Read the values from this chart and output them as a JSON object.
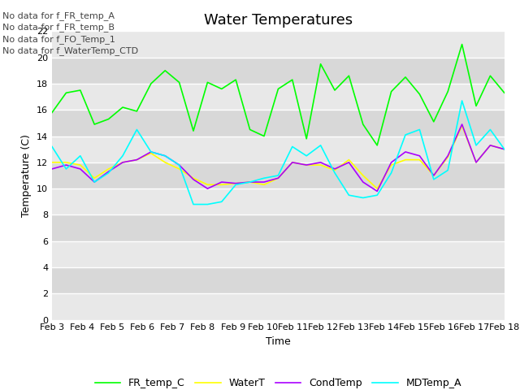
{
  "title": "Water Temperatures",
  "xlabel": "Time",
  "ylabel": "Temperature (C)",
  "ylim": [
    0,
    22
  ],
  "yticks": [
    0,
    2,
    4,
    6,
    8,
    10,
    12,
    14,
    16,
    18,
    20,
    22
  ],
  "annotations": [
    "No data for f_FR_temp_A",
    "No data for f_FR_temp_B",
    "No data for f_FO_Temp_1",
    "No data for f_WaterTemp_CTD"
  ],
  "x_labels": [
    "Feb 3",
    "Feb 4",
    "Feb 5",
    "Feb 6",
    "Feb 7",
    "Feb 8",
    "Feb 9",
    "Feb 10",
    "Feb 11",
    "Feb 12",
    "Feb 13",
    "Feb 14",
    "Feb 15",
    "Feb 16",
    "Feb 17",
    "Feb 18"
  ],
  "series": [
    {
      "name": "FR_temp_C",
      "color": "#00ff00",
      "linewidth": 1.2,
      "data": [
        15.8,
        17.3,
        17.5,
        14.9,
        15.3,
        16.2,
        15.9,
        18.0,
        19.0,
        18.1,
        14.4,
        18.1,
        17.6,
        18.3,
        14.5,
        14.0,
        17.6,
        18.3,
        13.8,
        19.5,
        17.5,
        18.6,
        14.9,
        13.3,
        17.4,
        18.5,
        17.2,
        15.1,
        17.4,
        21.0,
        16.3,
        18.6,
        17.3
      ]
    },
    {
      "name": "WaterT",
      "color": "#ffff00",
      "linewidth": 1.2,
      "data": [
        12.0,
        12.0,
        11.8,
        10.8,
        11.5,
        12.0,
        12.2,
        12.7,
        12.0,
        11.5,
        10.8,
        10.3,
        10.3,
        10.4,
        10.5,
        10.3,
        10.8,
        12.0,
        11.8,
        11.8,
        11.4,
        12.2,
        11.0,
        10.0,
        11.8,
        12.2,
        12.2,
        11.0,
        12.4,
        14.8,
        12.0,
        13.3,
        13.0
      ]
    },
    {
      "name": "CondTemp",
      "color": "#aa00ff",
      "linewidth": 1.2,
      "data": [
        11.5,
        11.8,
        11.5,
        10.5,
        11.3,
        12.0,
        12.2,
        12.8,
        12.5,
        11.8,
        10.7,
        10.0,
        10.5,
        10.4,
        10.5,
        10.5,
        10.8,
        12.0,
        11.8,
        12.0,
        11.5,
        12.0,
        10.5,
        9.8,
        12.0,
        12.8,
        12.5,
        11.0,
        12.5,
        14.9,
        12.0,
        13.3,
        13.0
      ]
    },
    {
      "name": "MDTemp_A",
      "color": "#00ffff",
      "linewidth": 1.2,
      "data": [
        13.2,
        11.5,
        12.5,
        10.5,
        11.2,
        12.5,
        14.5,
        12.8,
        12.5,
        11.8,
        8.8,
        8.8,
        9.0,
        10.3,
        10.5,
        10.8,
        11.0,
        13.2,
        12.5,
        13.3,
        11.2,
        9.5,
        9.3,
        9.5,
        11.2,
        14.1,
        14.5,
        10.7,
        11.4,
        16.7,
        13.3,
        14.5,
        13.0
      ]
    }
  ],
  "title_fontsize": 13,
  "label_fontsize": 9,
  "tick_fontsize": 8,
  "legend_fontsize": 9,
  "band_colors": [
    "#e8e8e8",
    "#d8d8d8"
  ],
  "grid_color": "#ffffff",
  "grid_linewidth": 1.0,
  "fig_bg": "#ffffff",
  "annotation_fontsize": 8,
  "annotation_color": "#444444"
}
